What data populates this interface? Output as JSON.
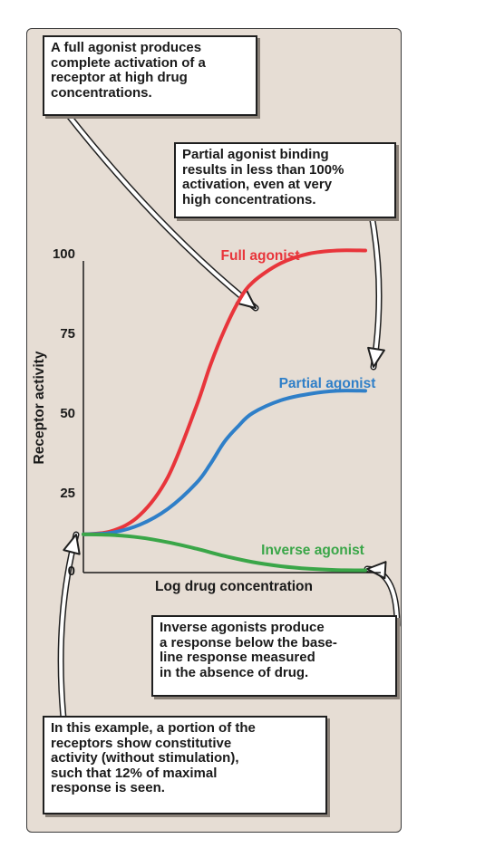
{
  "chart_data": {
    "type": "line",
    "xlabel": "Log drug concentration",
    "ylabel": "Receptor activity",
    "y_ticks": [
      "0",
      "25",
      "50",
      "75",
      "100"
    ],
    "ylim": [
      0,
      100
    ],
    "xlim": [
      0,
      10
    ],
    "series": [
      {
        "name": "Full agonist",
        "color": "#e8353b",
        "x": [
          0,
          1,
          2,
          3,
          4,
          4.5,
          5,
          5.5,
          6,
          7,
          8,
          9,
          10
        ],
        "values": [
          12,
          13,
          18,
          30,
          52,
          65,
          76,
          85,
          91,
          97,
          100,
          101,
          101
        ]
      },
      {
        "name": "Partial agonist",
        "color": "#2f7fc8",
        "x": [
          0,
          1,
          2,
          3,
          4,
          4.5,
          5,
          5.5,
          6,
          7,
          8,
          9,
          10
        ],
        "values": [
          12,
          12.5,
          15,
          20,
          28,
          34,
          41,
          46,
          50,
          54,
          56,
          57,
          57
        ]
      },
      {
        "name": "Inverse agonist",
        "color": "#3aa648",
        "x": [
          0,
          1,
          2,
          3,
          4,
          5,
          6,
          7,
          8,
          9,
          10
        ],
        "values": [
          12,
          11.8,
          11,
          9.5,
          7.5,
          5.2,
          3.3,
          2,
          1.2,
          0.8,
          0.7
        ]
      }
    ]
  },
  "callouts": {
    "full_agonist": "A full agonist produces\ncomplete activation of a\nreceptor at high drug\nconcentrations.",
    "partial_agonist": "Partial agonist binding\nresults in less than 100%\nactivation, even at very\nhigh concentrations.",
    "inverse_agonist": "Inverse agonists produce\na response below the base-\nline response measured\nin the absence of drug.",
    "constitutive": "In this example, a portion of the\nreceptors show constitutive\nactivity (without stimulation),\nsuch that 12% of maximal\nresponse is seen."
  },
  "colors": {
    "panel_bg": "#e6ddd4",
    "arrow_fill": "#ffffff",
    "arrow_stroke": "#1f1f1f"
  }
}
